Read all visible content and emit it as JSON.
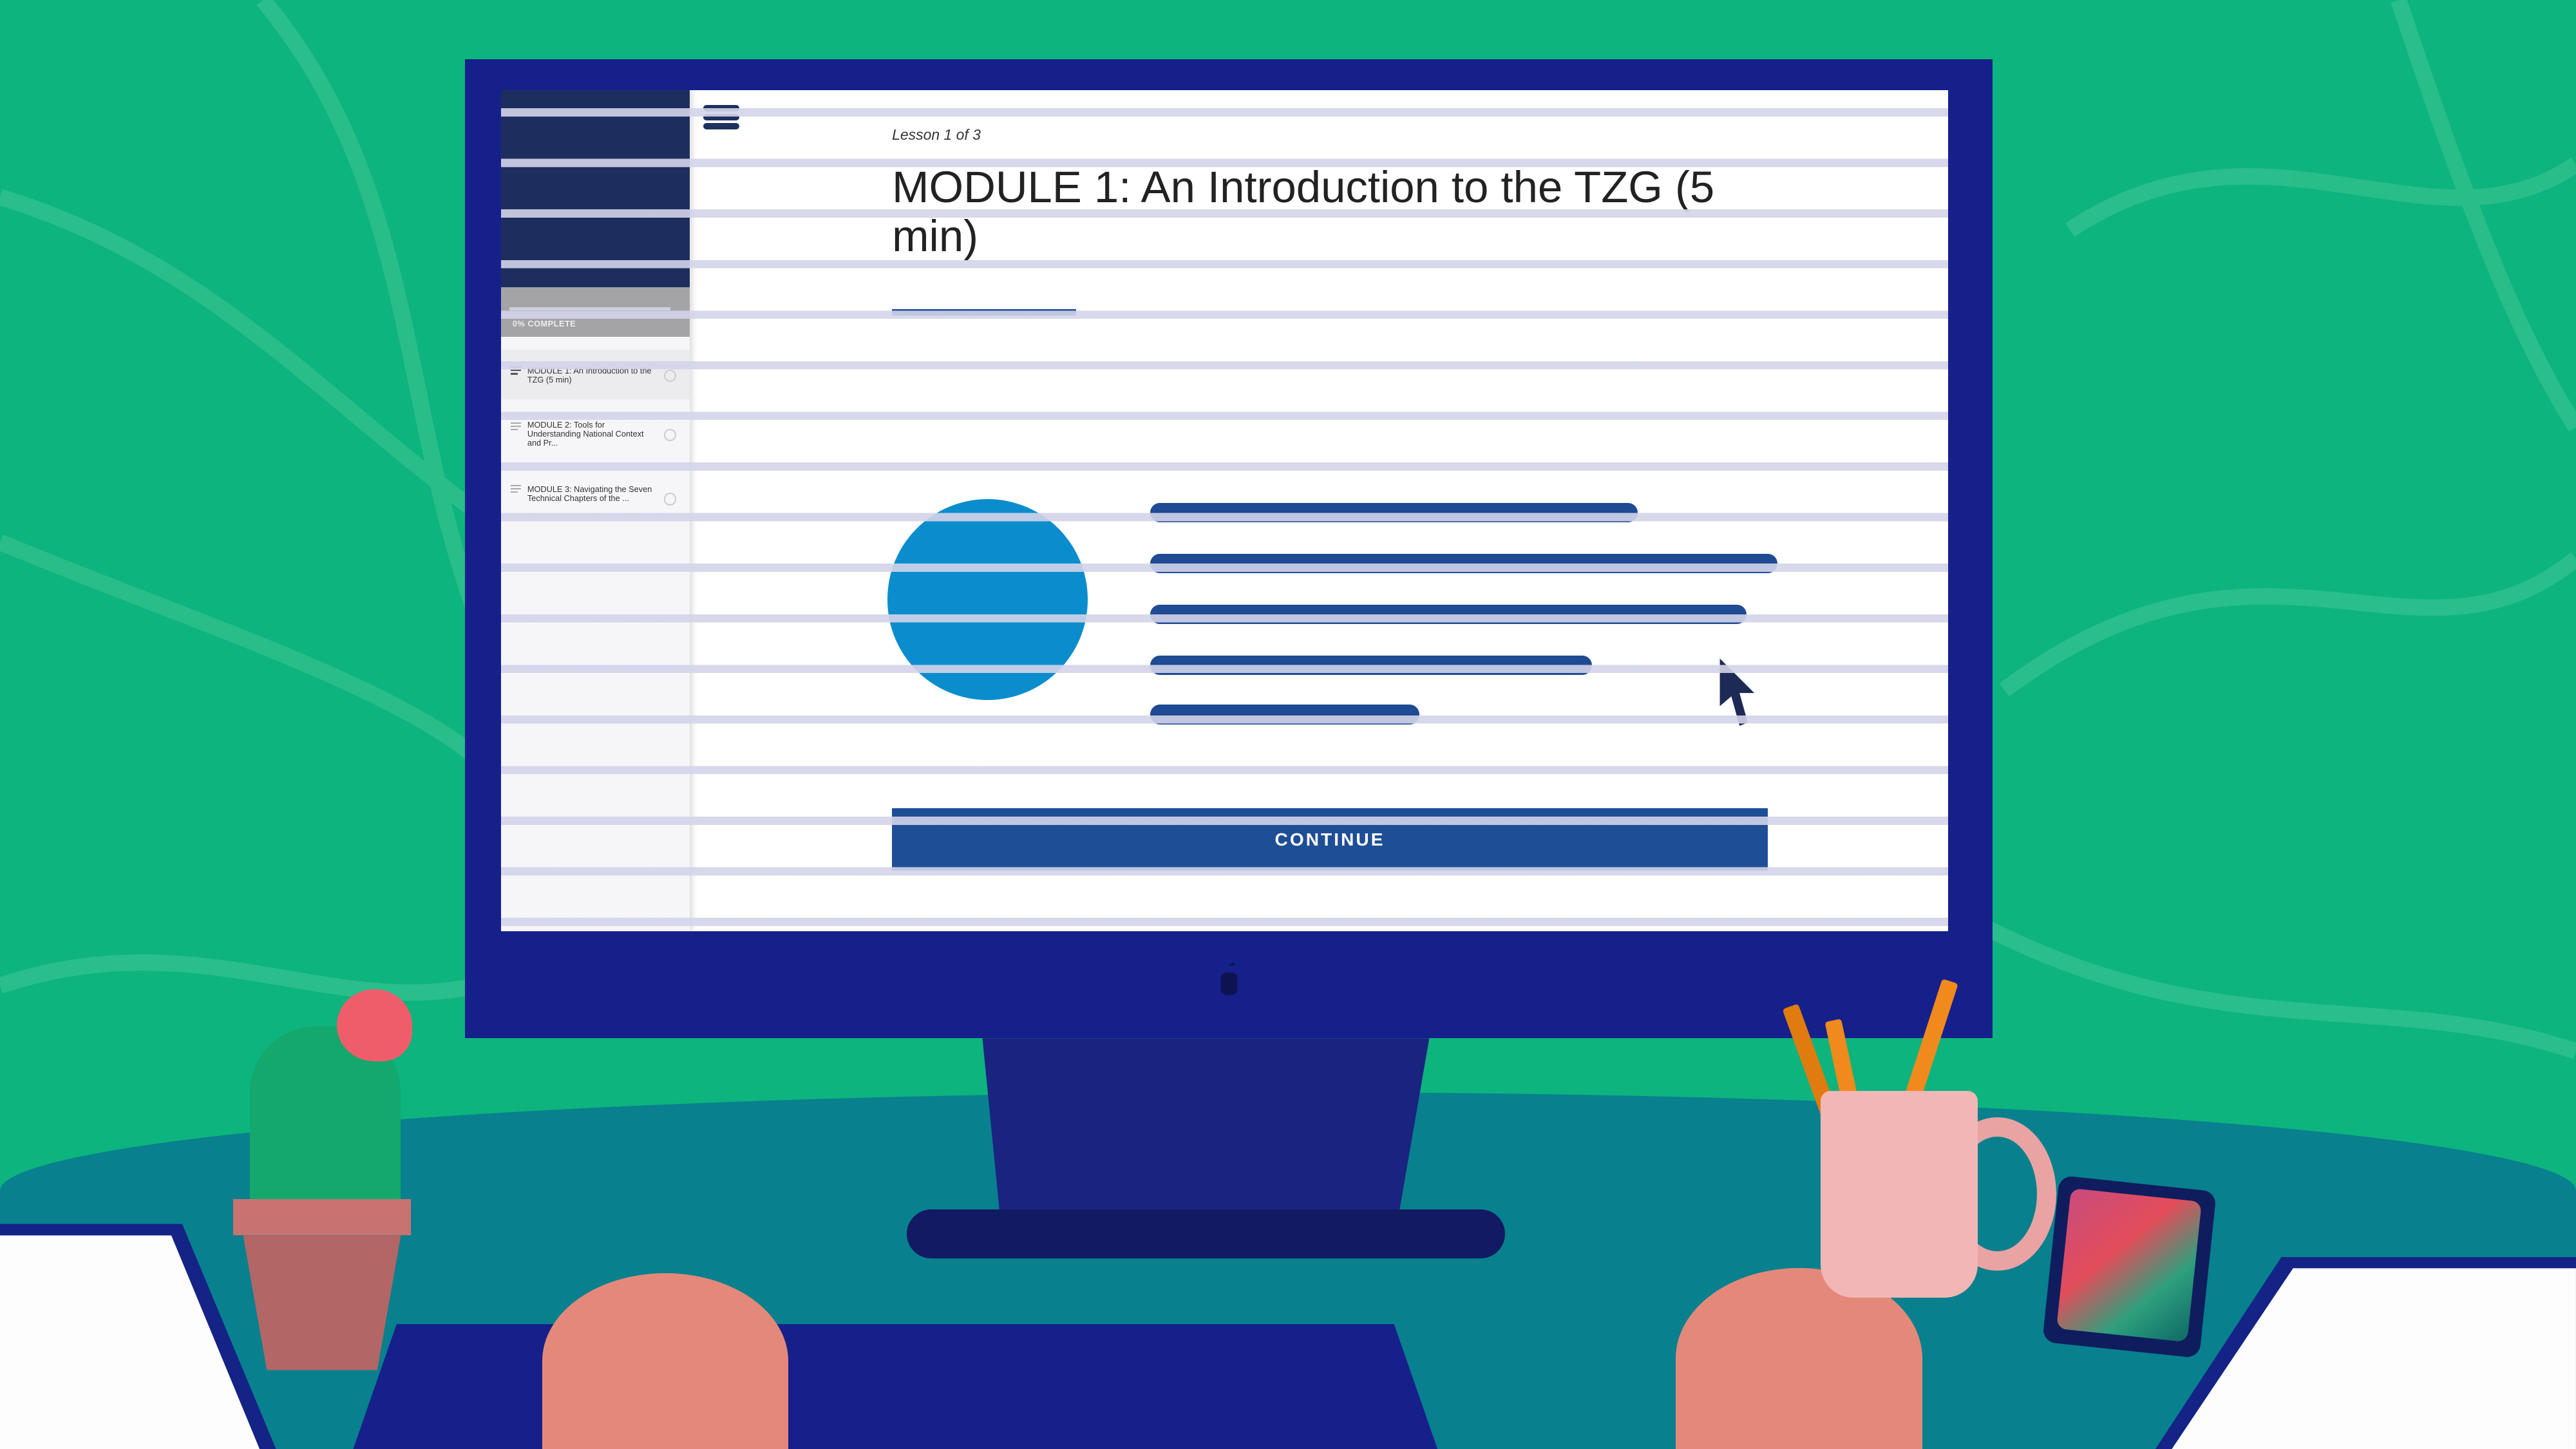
{
  "colors": {
    "background": "#0db47d",
    "bezel": "#16208a",
    "accent": "#1e4e96",
    "circle": "#0b8dcd",
    "desk": "#08808e"
  },
  "sidebar": {
    "progress_label": "0% COMPLETE",
    "progress_percent": 0,
    "items": [
      {
        "label": "MODULE 1: An Introduction to the TZG (5 min)",
        "active": true
      },
      {
        "label": "MODULE 2: Tools for Understanding National Context and Pr...",
        "active": false
      },
      {
        "label": "MODULE 3: Navigating the Seven Technical Chapters of the ...",
        "active": false
      }
    ]
  },
  "header": {
    "menu_icon": "hamburger-menu-icon"
  },
  "lesson": {
    "counter": "Lesson 1 of 3",
    "title": "MODULE 1: An Introduction to the TZG (5 min)",
    "continue_label": "CONTINUE"
  }
}
